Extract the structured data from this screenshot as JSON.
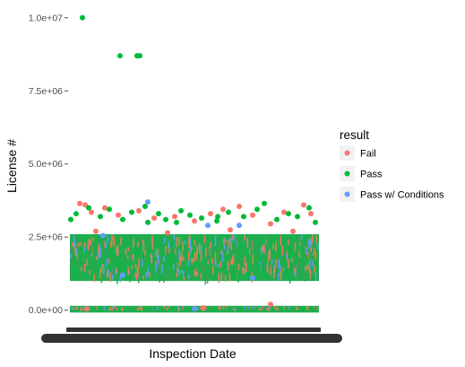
{
  "chart_data": {
    "type": "scatter",
    "xlabel": "Inspection Date",
    "ylabel": "License #",
    "y_ticks": [
      {
        "value": 0,
        "label": "0.0e+00"
      },
      {
        "value": 2500000,
        "label": "2.5e+06"
      },
      {
        "value": 5000000,
        "label": "5.0e+06"
      },
      {
        "value": 7500000,
        "label": "7.5e+06"
      },
      {
        "value": 10000000,
        "label": "1.0e+07"
      }
    ],
    "ylim": [
      -500000,
      10300000
    ],
    "x_axis_note": "x tick labels overplotted (illegible)",
    "grid": false,
    "legend": {
      "title": "result",
      "position": "right",
      "entries": [
        {
          "name": "Fail",
          "color": "#F8766D"
        },
        {
          "name": "Pass",
          "color": "#00BA38"
        },
        {
          "name": "Pass w/ Conditions",
          "color": "#619CFF"
        }
      ]
    },
    "series": [
      {
        "name": "Fail",
        "color": "#F8766D",
        "points": [
          {
            "x": 12,
            "y": 3650000
          },
          {
            "x": 18,
            "y": 3600000
          },
          {
            "x": 25,
            "y": 3350000
          },
          {
            "x": 40,
            "y": 3500000
          },
          {
            "x": 55,
            "y": 3250000
          },
          {
            "x": 78,
            "y": 3400000
          },
          {
            "x": 95,
            "y": 3150000
          },
          {
            "x": 118,
            "y": 3200000
          },
          {
            "x": 140,
            "y": 3050000
          },
          {
            "x": 158,
            "y": 3300000
          },
          {
            "x": 172,
            "y": 3450000
          },
          {
            "x": 190,
            "y": 3550000
          },
          {
            "x": 205,
            "y": 3250000
          },
          {
            "x": 225,
            "y": 2950000
          },
          {
            "x": 240,
            "y": 3350000
          },
          {
            "x": 262,
            "y": 3600000
          },
          {
            "x": 270,
            "y": 3300000
          },
          {
            "x": 30,
            "y": 2700000
          },
          {
            "x": 110,
            "y": 2650000
          },
          {
            "x": 180,
            "y": 2750000
          },
          {
            "x": 250,
            "y": 2700000
          },
          {
            "x": 225,
            "y": 200000
          },
          {
            "x": 20,
            "y": 50000
          },
          {
            "x": 150,
            "y": 80000
          }
        ]
      },
      {
        "name": "Pass",
        "color": "#00BA38",
        "points": [
          {
            "x": 15,
            "y": 10000000
          },
          {
            "x": 57,
            "y": 8700000
          },
          {
            "x": 76,
            "y": 8700000
          },
          {
            "x": 79,
            "y": 8700000
          },
          {
            "x": 2,
            "y": 3100000
          },
          {
            "x": 8,
            "y": 3300000
          },
          {
            "x": 22,
            "y": 3500000
          },
          {
            "x": 35,
            "y": 3200000
          },
          {
            "x": 45,
            "y": 3450000
          },
          {
            "x": 60,
            "y": 3100000
          },
          {
            "x": 70,
            "y": 3350000
          },
          {
            "x": 85,
            "y": 3550000
          },
          {
            "x": 100,
            "y": 3300000
          },
          {
            "x": 108,
            "y": 3100000
          },
          {
            "x": 125,
            "y": 3400000
          },
          {
            "x": 135,
            "y": 3250000
          },
          {
            "x": 148,
            "y": 3150000
          },
          {
            "x": 165,
            "y": 3050000
          },
          {
            "x": 178,
            "y": 3350000
          },
          {
            "x": 195,
            "y": 3200000
          },
          {
            "x": 210,
            "y": 3450000
          },
          {
            "x": 218,
            "y": 3650000
          },
          {
            "x": 232,
            "y": 3100000
          },
          {
            "x": 245,
            "y": 3300000
          },
          {
            "x": 255,
            "y": 3200000
          },
          {
            "x": 268,
            "y": 3500000
          },
          {
            "x": 275,
            "y": 3000000
          },
          {
            "x": 88,
            "y": 3000000
          },
          {
            "x": 166,
            "y": 3200000
          },
          {
            "x": 120,
            "y": 3000000
          }
        ]
      },
      {
        "name": "Pass w/ Conditions",
        "color": "#619CFF",
        "points": [
          {
            "x": 88,
            "y": 3700000
          },
          {
            "x": 155,
            "y": 2900000
          },
          {
            "x": 38,
            "y": 2550000
          },
          {
            "x": 190,
            "y": 2900000
          },
          {
            "x": 60,
            "y": 1200000
          },
          {
            "x": 205,
            "y": 1100000
          },
          {
            "x": 140,
            "y": 50000
          }
        ]
      }
    ]
  }
}
